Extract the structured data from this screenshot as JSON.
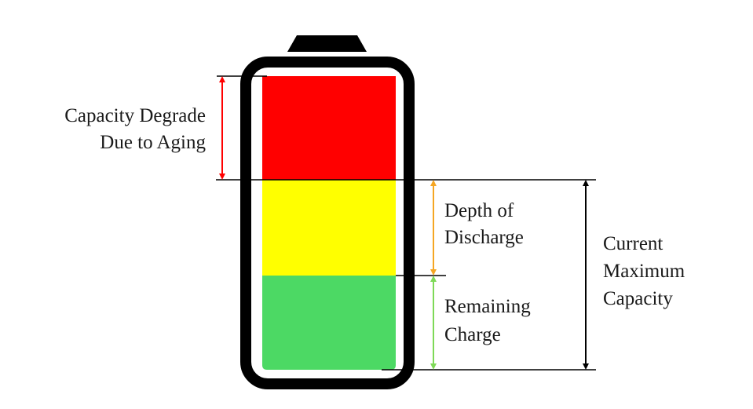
{
  "labels": {
    "aging_line1": "Capacity Degrade",
    "aging_line2": "Due to Aging",
    "dod_line1": "Depth of",
    "dod_line2": "Discharge",
    "remaining_line1": "Remaining",
    "remaining_line2": "Charge",
    "current_line1": "Current",
    "current_line2": "Maximum",
    "current_line3": "Capacity"
  },
  "colors": {
    "aging_fill": "#ff0000",
    "dod_fill": "#ffff00",
    "remaining_fill": "#4cd964",
    "outline": "#000000",
    "aging_arrow": "#ff0000",
    "dod_arrow": "#f5a623",
    "remaining_arrow": "#7ed957",
    "current_arrow": "#000000"
  }
}
